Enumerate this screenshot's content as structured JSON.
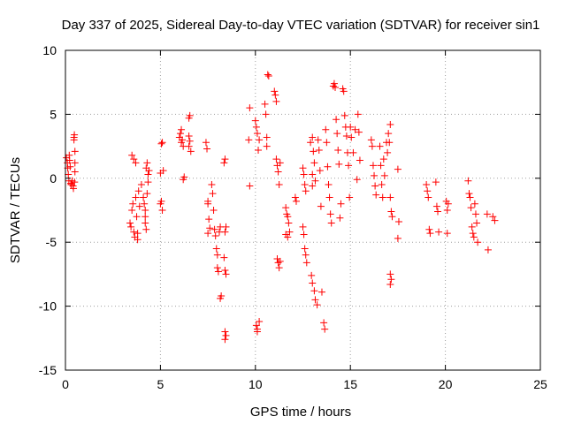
{
  "chart_data": {
    "type": "scatter",
    "title": "Day 337 of 2025, Sidereal Day-to-day VTEC variation (SDTVAR) for receiver sin1",
    "xlabel": "GPS time / hours",
    "ylabel": "SDTVAR / TECUs",
    "xlim": [
      0,
      25
    ],
    "ylim": [
      -15,
      10
    ],
    "xticks": [
      0,
      5,
      10,
      15,
      20,
      25
    ],
    "yticks": [
      -15,
      -10,
      -5,
      0,
      5,
      10
    ],
    "xtick_labels": [
      "0",
      "5",
      "10",
      "15",
      "20",
      "25"
    ],
    "ytick_labels": [
      "-15",
      "-10",
      "-5",
      "0",
      "5",
      "10"
    ],
    "grid": true,
    "marker": "+",
    "color": "#ff0000",
    "series": [
      {
        "name": "sin1",
        "points": [
          [
            0.05,
            1.6
          ],
          [
            0.1,
            1.2
          ],
          [
            0.12,
            0.8
          ],
          [
            0.15,
            0.3
          ],
          [
            0.18,
            -0.2
          ],
          [
            0.2,
            1.8
          ],
          [
            0.22,
            1.4
          ],
          [
            0.25,
            0.9
          ],
          [
            0.28,
            -0.4
          ],
          [
            0.3,
            -0.5
          ],
          [
            0.35,
            -0.2
          ],
          [
            0.4,
            -0.6
          ],
          [
            0.42,
            -0.8
          ],
          [
            0.45,
            3.2
          ],
          [
            0.47,
            3.4
          ],
          [
            0.5,
            2.1
          ],
          [
            0.5,
            0.5
          ],
          [
            0.48,
            -0.3
          ],
          [
            0.45,
            3.0
          ],
          [
            0.5,
            1.2
          ],
          [
            3.4,
            -3.5
          ],
          [
            3.45,
            -3.8
          ],
          [
            3.5,
            -2.5
          ],
          [
            3.55,
            -2.0
          ],
          [
            3.6,
            -4.2
          ],
          [
            3.65,
            -4.6
          ],
          [
            3.7,
            -1.5
          ],
          [
            3.5,
            1.8
          ],
          [
            3.6,
            1.5
          ],
          [
            3.7,
            1.2
          ],
          [
            3.75,
            -3.0
          ],
          [
            3.8,
            -4.3
          ],
          [
            3.8,
            -4.8
          ],
          [
            3.85,
            -1.0
          ],
          [
            3.9,
            -2.2
          ],
          [
            4.0,
            -0.5
          ],
          [
            4.1,
            -1.5
          ],
          [
            4.15,
            -2.0
          ],
          [
            4.2,
            -2.5
          ],
          [
            4.2,
            -3.0
          ],
          [
            4.25,
            0.8
          ],
          [
            4.3,
            1.2
          ],
          [
            4.3,
            -1.2
          ],
          [
            4.35,
            -0.3
          ],
          [
            4.4,
            0.6
          ],
          [
            4.2,
            -3.5
          ],
          [
            4.25,
            -4.0
          ],
          [
            4.35,
            0.3
          ],
          [
            5.0,
            -2.0
          ],
          [
            5.05,
            -1.8
          ],
          [
            5.1,
            -2.5
          ],
          [
            5.05,
            2.7
          ],
          [
            5.1,
            2.8
          ],
          [
            5.15,
            0.6
          ],
          [
            5.0,
            0.4
          ],
          [
            6.0,
            3.2
          ],
          [
            6.05,
            3.5
          ],
          [
            6.1,
            2.8
          ],
          [
            6.15,
            3.0
          ],
          [
            6.2,
            2.5
          ],
          [
            6.25,
            0.1
          ],
          [
            6.2,
            -0.1
          ],
          [
            6.1,
            3.8
          ],
          [
            6.5,
            4.7
          ],
          [
            6.55,
            4.9
          ],
          [
            6.5,
            3.3
          ],
          [
            6.55,
            2.9
          ],
          [
            6.6,
            2.1
          ],
          [
            6.5,
            2.5
          ],
          [
            7.4,
            2.8
          ],
          [
            7.45,
            2.3
          ],
          [
            7.5,
            -1.8
          ],
          [
            7.5,
            -2.0
          ],
          [
            7.55,
            -3.2
          ],
          [
            7.6,
            -3.9
          ],
          [
            7.5,
            -4.3
          ],
          [
            7.7,
            -0.5
          ],
          [
            7.75,
            -1.2
          ],
          [
            7.8,
            -2.5
          ],
          [
            7.85,
            -4.0
          ],
          [
            7.9,
            -4.5
          ],
          [
            7.95,
            -5.5
          ],
          [
            8.0,
            -6.0
          ],
          [
            8.0,
            -7.0
          ],
          [
            8.05,
            -7.3
          ],
          [
            8.1,
            -4.2
          ],
          [
            8.15,
            -3.8
          ],
          [
            8.2,
            -9.2
          ],
          [
            8.15,
            -9.4
          ],
          [
            8.35,
            1.2
          ],
          [
            8.4,
            1.5
          ],
          [
            8.45,
            -3.8
          ],
          [
            8.4,
            -4.2
          ],
          [
            8.35,
            -6.2
          ],
          [
            8.4,
            -7.2
          ],
          [
            8.45,
            -7.5
          ],
          [
            8.4,
            -12.0
          ],
          [
            8.45,
            -12.3
          ],
          [
            8.4,
            -12.6
          ],
          [
            9.7,
            5.5
          ],
          [
            9.65,
            3.0
          ],
          [
            9.7,
            -0.6
          ],
          [
            10.0,
            4.5
          ],
          [
            10.05,
            4.0
          ],
          [
            10.1,
            3.5
          ],
          [
            10.15,
            2.2
          ],
          [
            10.2,
            3.0
          ],
          [
            10.05,
            -11.5
          ],
          [
            10.1,
            -11.8
          ],
          [
            10.2,
            -11.2
          ],
          [
            10.1,
            -12.0
          ],
          [
            10.5,
            5.8
          ],
          [
            10.55,
            5.0
          ],
          [
            10.6,
            3.2
          ],
          [
            10.6,
            2.5
          ],
          [
            10.65,
            8.1
          ],
          [
            10.7,
            8.0
          ],
          [
            11.0,
            6.8
          ],
          [
            11.05,
            6.5
          ],
          [
            11.1,
            6.0
          ],
          [
            11.1,
            1.5
          ],
          [
            11.15,
            1.0
          ],
          [
            11.2,
            0.5
          ],
          [
            11.25,
            -0.5
          ],
          [
            11.15,
            -6.3
          ],
          [
            11.2,
            -6.6
          ],
          [
            11.25,
            -7.0
          ],
          [
            11.3,
            -6.5
          ],
          [
            11.3,
            1.2
          ],
          [
            11.6,
            -2.3
          ],
          [
            11.65,
            -2.8
          ],
          [
            11.7,
            -3.0
          ],
          [
            11.75,
            -3.5
          ],
          [
            11.8,
            -4.2
          ],
          [
            11.7,
            -4.6
          ],
          [
            11.6,
            -4.4
          ],
          [
            12.1,
            -1.5
          ],
          [
            12.15,
            -1.8
          ],
          [
            12.5,
            0.8
          ],
          [
            12.55,
            0.3
          ],
          [
            12.6,
            -0.5
          ],
          [
            12.65,
            -1.0
          ],
          [
            12.5,
            -3.8
          ],
          [
            12.55,
            -4.4
          ],
          [
            12.6,
            -5.5
          ],
          [
            12.65,
            -6.0
          ],
          [
            12.7,
            -6.6
          ],
          [
            12.9,
            2.8
          ],
          [
            13.0,
            3.2
          ],
          [
            13.05,
            2.1
          ],
          [
            13.1,
            1.2
          ],
          [
            13.0,
            0.3
          ],
          [
            13.15,
            -0.2
          ],
          [
            13.0,
            -0.6
          ],
          [
            12.95,
            -7.6
          ],
          [
            13.0,
            -8.2
          ],
          [
            13.1,
            -8.8
          ],
          [
            13.15,
            -9.5
          ],
          [
            13.25,
            -9.9
          ],
          [
            13.3,
            3.0
          ],
          [
            13.35,
            2.2
          ],
          [
            13.4,
            0.6
          ],
          [
            13.45,
            -2.2
          ],
          [
            13.5,
            -8.9
          ],
          [
            13.6,
            -11.3
          ],
          [
            13.65,
            -11.8
          ],
          [
            13.7,
            3.8
          ],
          [
            13.75,
            2.8
          ],
          [
            13.8,
            0.9
          ],
          [
            13.85,
            -0.5
          ],
          [
            13.9,
            -1.5
          ],
          [
            13.95,
            -2.8
          ],
          [
            14.0,
            -3.5
          ],
          [
            14.1,
            7.2
          ],
          [
            14.15,
            7.4
          ],
          [
            14.2,
            7.1
          ],
          [
            14.25,
            4.6
          ],
          [
            14.3,
            3.5
          ],
          [
            14.35,
            2.2
          ],
          [
            14.4,
            1.1
          ],
          [
            14.45,
            -3.1
          ],
          [
            14.5,
            -2.0
          ],
          [
            14.6,
            7.0
          ],
          [
            14.65,
            6.8
          ],
          [
            14.7,
            4.9
          ],
          [
            14.75,
            4.0
          ],
          [
            14.8,
            3.3
          ],
          [
            14.85,
            2.0
          ],
          [
            14.9,
            1.0
          ],
          [
            14.95,
            -1.5
          ],
          [
            15.0,
            4.0
          ],
          [
            15.05,
            3.2
          ],
          [
            15.15,
            2.0
          ],
          [
            15.25,
            3.8
          ],
          [
            15.4,
            5.0
          ],
          [
            15.45,
            3.6
          ],
          [
            15.5,
            1.4
          ],
          [
            15.35,
            -0.1
          ],
          [
            16.1,
            3.0
          ],
          [
            16.15,
            2.5
          ],
          [
            16.2,
            1.0
          ],
          [
            16.25,
            0.2
          ],
          [
            16.3,
            -0.6
          ],
          [
            16.35,
            -1.3
          ],
          [
            16.55,
            2.5
          ],
          [
            16.6,
            1.0
          ],
          [
            16.65,
            -0.5
          ],
          [
            16.7,
            -1.5
          ],
          [
            16.75,
            1.5
          ],
          [
            16.8,
            0.2
          ],
          [
            16.9,
            2.8
          ],
          [
            16.95,
            2.0
          ],
          [
            17.0,
            3.5
          ],
          [
            17.05,
            2.8
          ],
          [
            17.1,
            4.2
          ],
          [
            17.1,
            -1.5
          ],
          [
            17.15,
            -2.6
          ],
          [
            17.2,
            -3.0
          ],
          [
            17.1,
            -7.5
          ],
          [
            17.15,
            -7.9
          ],
          [
            17.1,
            -8.3
          ],
          [
            17.5,
            0.7
          ],
          [
            17.55,
            -3.4
          ],
          [
            17.5,
            -4.7
          ],
          [
            19.0,
            -0.5
          ],
          [
            19.05,
            -1.0
          ],
          [
            19.1,
            -1.5
          ],
          [
            19.15,
            -4.0
          ],
          [
            19.2,
            -4.3
          ],
          [
            19.5,
            -0.3
          ],
          [
            19.55,
            -2.2
          ],
          [
            19.6,
            -2.6
          ],
          [
            19.65,
            -4.2
          ],
          [
            20.05,
            -1.8
          ],
          [
            20.1,
            -2.5
          ],
          [
            20.15,
            -2.0
          ],
          [
            20.1,
            -4.3
          ],
          [
            21.2,
            -0.2
          ],
          [
            21.25,
            -1.2
          ],
          [
            21.3,
            -1.5
          ],
          [
            21.35,
            -2.3
          ],
          [
            21.4,
            -3.8
          ],
          [
            21.45,
            -4.3
          ],
          [
            21.5,
            -4.6
          ],
          [
            21.55,
            -2.0
          ],
          [
            21.6,
            -2.8
          ],
          [
            21.65,
            -3.5
          ],
          [
            21.7,
            -5.0
          ],
          [
            22.2,
            -2.8
          ],
          [
            22.25,
            -5.6
          ],
          [
            22.5,
            -3.0
          ],
          [
            22.6,
            -3.3
          ]
        ]
      }
    ]
  }
}
